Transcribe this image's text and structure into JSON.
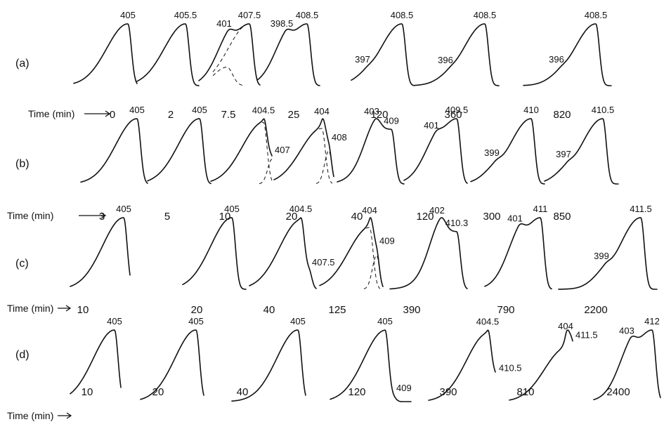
{
  "chart_data": [
    {
      "type": "line",
      "row_label": "(a)",
      "xlabel": "Time (min)",
      "panels": [
        {
          "time": "0",
          "peaks": [
            {
              "label": "405",
              "h": 1.0,
              "main": true
            }
          ]
        },
        {
          "time": "2",
          "peaks": [
            {
              "label": "405.5",
              "h": 1.0,
              "main": true
            }
          ]
        },
        {
          "time": "7.5",
          "peaks": [
            {
              "label": "401",
              "h": 0.3,
              "dashed": true
            },
            {
              "label": "407.5",
              "h": 1.0,
              "main": true,
              "dashed": true
            }
          ]
        },
        {
          "time": "25",
          "peaks": [
            {
              "label": "398.5",
              "h": 0.3
            },
            {
              "label": "408.5",
              "h": 1.0,
              "main": true
            }
          ]
        },
        {
          "time": "120",
          "peaks": [
            {
              "label": "397",
              "h": 0.06
            },
            {
              "label": "408.5",
              "h": 1.0,
              "main": true
            }
          ]
        },
        {
          "time": "360",
          "peaks": [
            {
              "label": "396",
              "h": 0.05
            },
            {
              "label": "408.5",
              "h": 1.0,
              "main": true
            }
          ]
        },
        {
          "time": "820",
          "peaks": [
            {
              "label": "396",
              "h": 0.06
            },
            {
              "label": "408.5",
              "h": 1.0,
              "main": true
            }
          ]
        }
      ]
    },
    {
      "type": "line",
      "row_label": "(b)",
      "xlabel": "Time (min)",
      "panels": [
        {
          "time": "3",
          "peaks": [
            {
              "label": "405",
              "h": 1.0,
              "main": true
            }
          ]
        },
        {
          "time": "5",
          "peaks": [
            {
              "label": "405",
              "h": 1.0,
              "main": true
            }
          ]
        },
        {
          "time": "10",
          "peaks": [
            {
              "label": "404.5",
              "h": 1.0,
              "main": true,
              "dashed": true
            },
            {
              "label": "407",
              "h": 0.4,
              "dashed": true
            }
          ]
        },
        {
          "time": "20",
          "peaks": [
            {
              "label": "404",
              "h": 1.0,
              "main": true,
              "dashed": true
            },
            {
              "label": "408",
              "h": 0.6,
              "dashed": true
            }
          ]
        },
        {
          "time": "40",
          "peaks": [
            {
              "label": "403",
              "h": 0.45
            },
            {
              "label": "409",
              "h": 1.0,
              "main": true
            }
          ]
        },
        {
          "time": "120",
          "peaks": [
            {
              "label": "401",
              "h": 0.2
            },
            {
              "label": "409.5",
              "h": 1.0,
              "main": true
            }
          ]
        },
        {
          "time": "300",
          "peaks": [
            {
              "label": "399",
              "h": 0.12
            },
            {
              "label": "410",
              "h": 1.0,
              "main": true
            }
          ]
        },
        {
          "time": "850",
          "peaks": [
            {
              "label": "397",
              "h": 0.1
            },
            {
              "label": "410.5",
              "h": 1.0,
              "main": true
            }
          ]
        }
      ]
    },
    {
      "type": "line",
      "row_label": "(c)",
      "xlabel": "Time (min)",
      "panels": [
        {
          "time": "10",
          "peaks": [
            {
              "label": "405",
              "h": 1.0,
              "main": true
            }
          ]
        },
        {
          "time": "20",
          "peaks": [
            {
              "label": "405",
              "h": 1.0,
              "main": true
            }
          ]
        },
        {
          "time": "40",
          "peaks": [
            {
              "label": "404.5",
              "h": 1.0,
              "main": true
            },
            {
              "label": "407.5",
              "h": 0.25
            }
          ]
        },
        {
          "time": "125",
          "peaks": [
            {
              "label": "404",
              "h": 1.0,
              "main": true,
              "dashed": true
            },
            {
              "label": "409",
              "h": 0.55,
              "dashed": true
            }
          ]
        },
        {
          "time": "390",
          "peaks": [
            {
              "label": "402",
              "h": 0.5
            },
            {
              "label": "410.3",
              "h": 1.0,
              "main": true
            }
          ]
        },
        {
          "time": "790",
          "peaks": [
            {
              "label": "401",
              "h": 0.3
            },
            {
              "label": "411",
              "h": 1.0,
              "main": true
            }
          ]
        },
        {
          "time": "2200",
          "peaks": [
            {
              "label": "399",
              "h": 0.12
            },
            {
              "label": "411.5",
              "h": 1.0,
              "main": true
            }
          ]
        }
      ]
    },
    {
      "type": "line",
      "row_label": "(d)",
      "xlabel": "Time (min)",
      "panels": [
        {
          "time": "10",
          "peaks": [
            {
              "label": "405",
              "h": 1.0,
              "main": true
            }
          ]
        },
        {
          "time": "20",
          "peaks": [
            {
              "label": "405",
              "h": 1.0,
              "main": true
            }
          ]
        },
        {
          "time": "40",
          "peaks": [
            {
              "label": "405",
              "h": 1.0,
              "main": true
            }
          ]
        },
        {
          "time": "120",
          "peaks": [
            {
              "label": "405",
              "h": 1.0,
              "main": true
            },
            {
              "label": "409",
              "h": 0.05
            }
          ]
        },
        {
          "time": "390",
          "peaks": [
            {
              "label": "404.5",
              "h": 1.0,
              "main": true
            },
            {
              "label": "410.5",
              "h": 0.35
            }
          ]
        },
        {
          "time": "810",
          "peaks": [
            {
              "label": "404",
              "h": 0.9,
              "main": true
            },
            {
              "label": "411.5",
              "h": 0.9
            }
          ]
        },
        {
          "time": "2400",
          "peaks": [
            {
              "label": "403",
              "h": 0.3
            },
            {
              "label": "412",
              "h": 1.0,
              "main": true
            }
          ]
        }
      ]
    }
  ]
}
